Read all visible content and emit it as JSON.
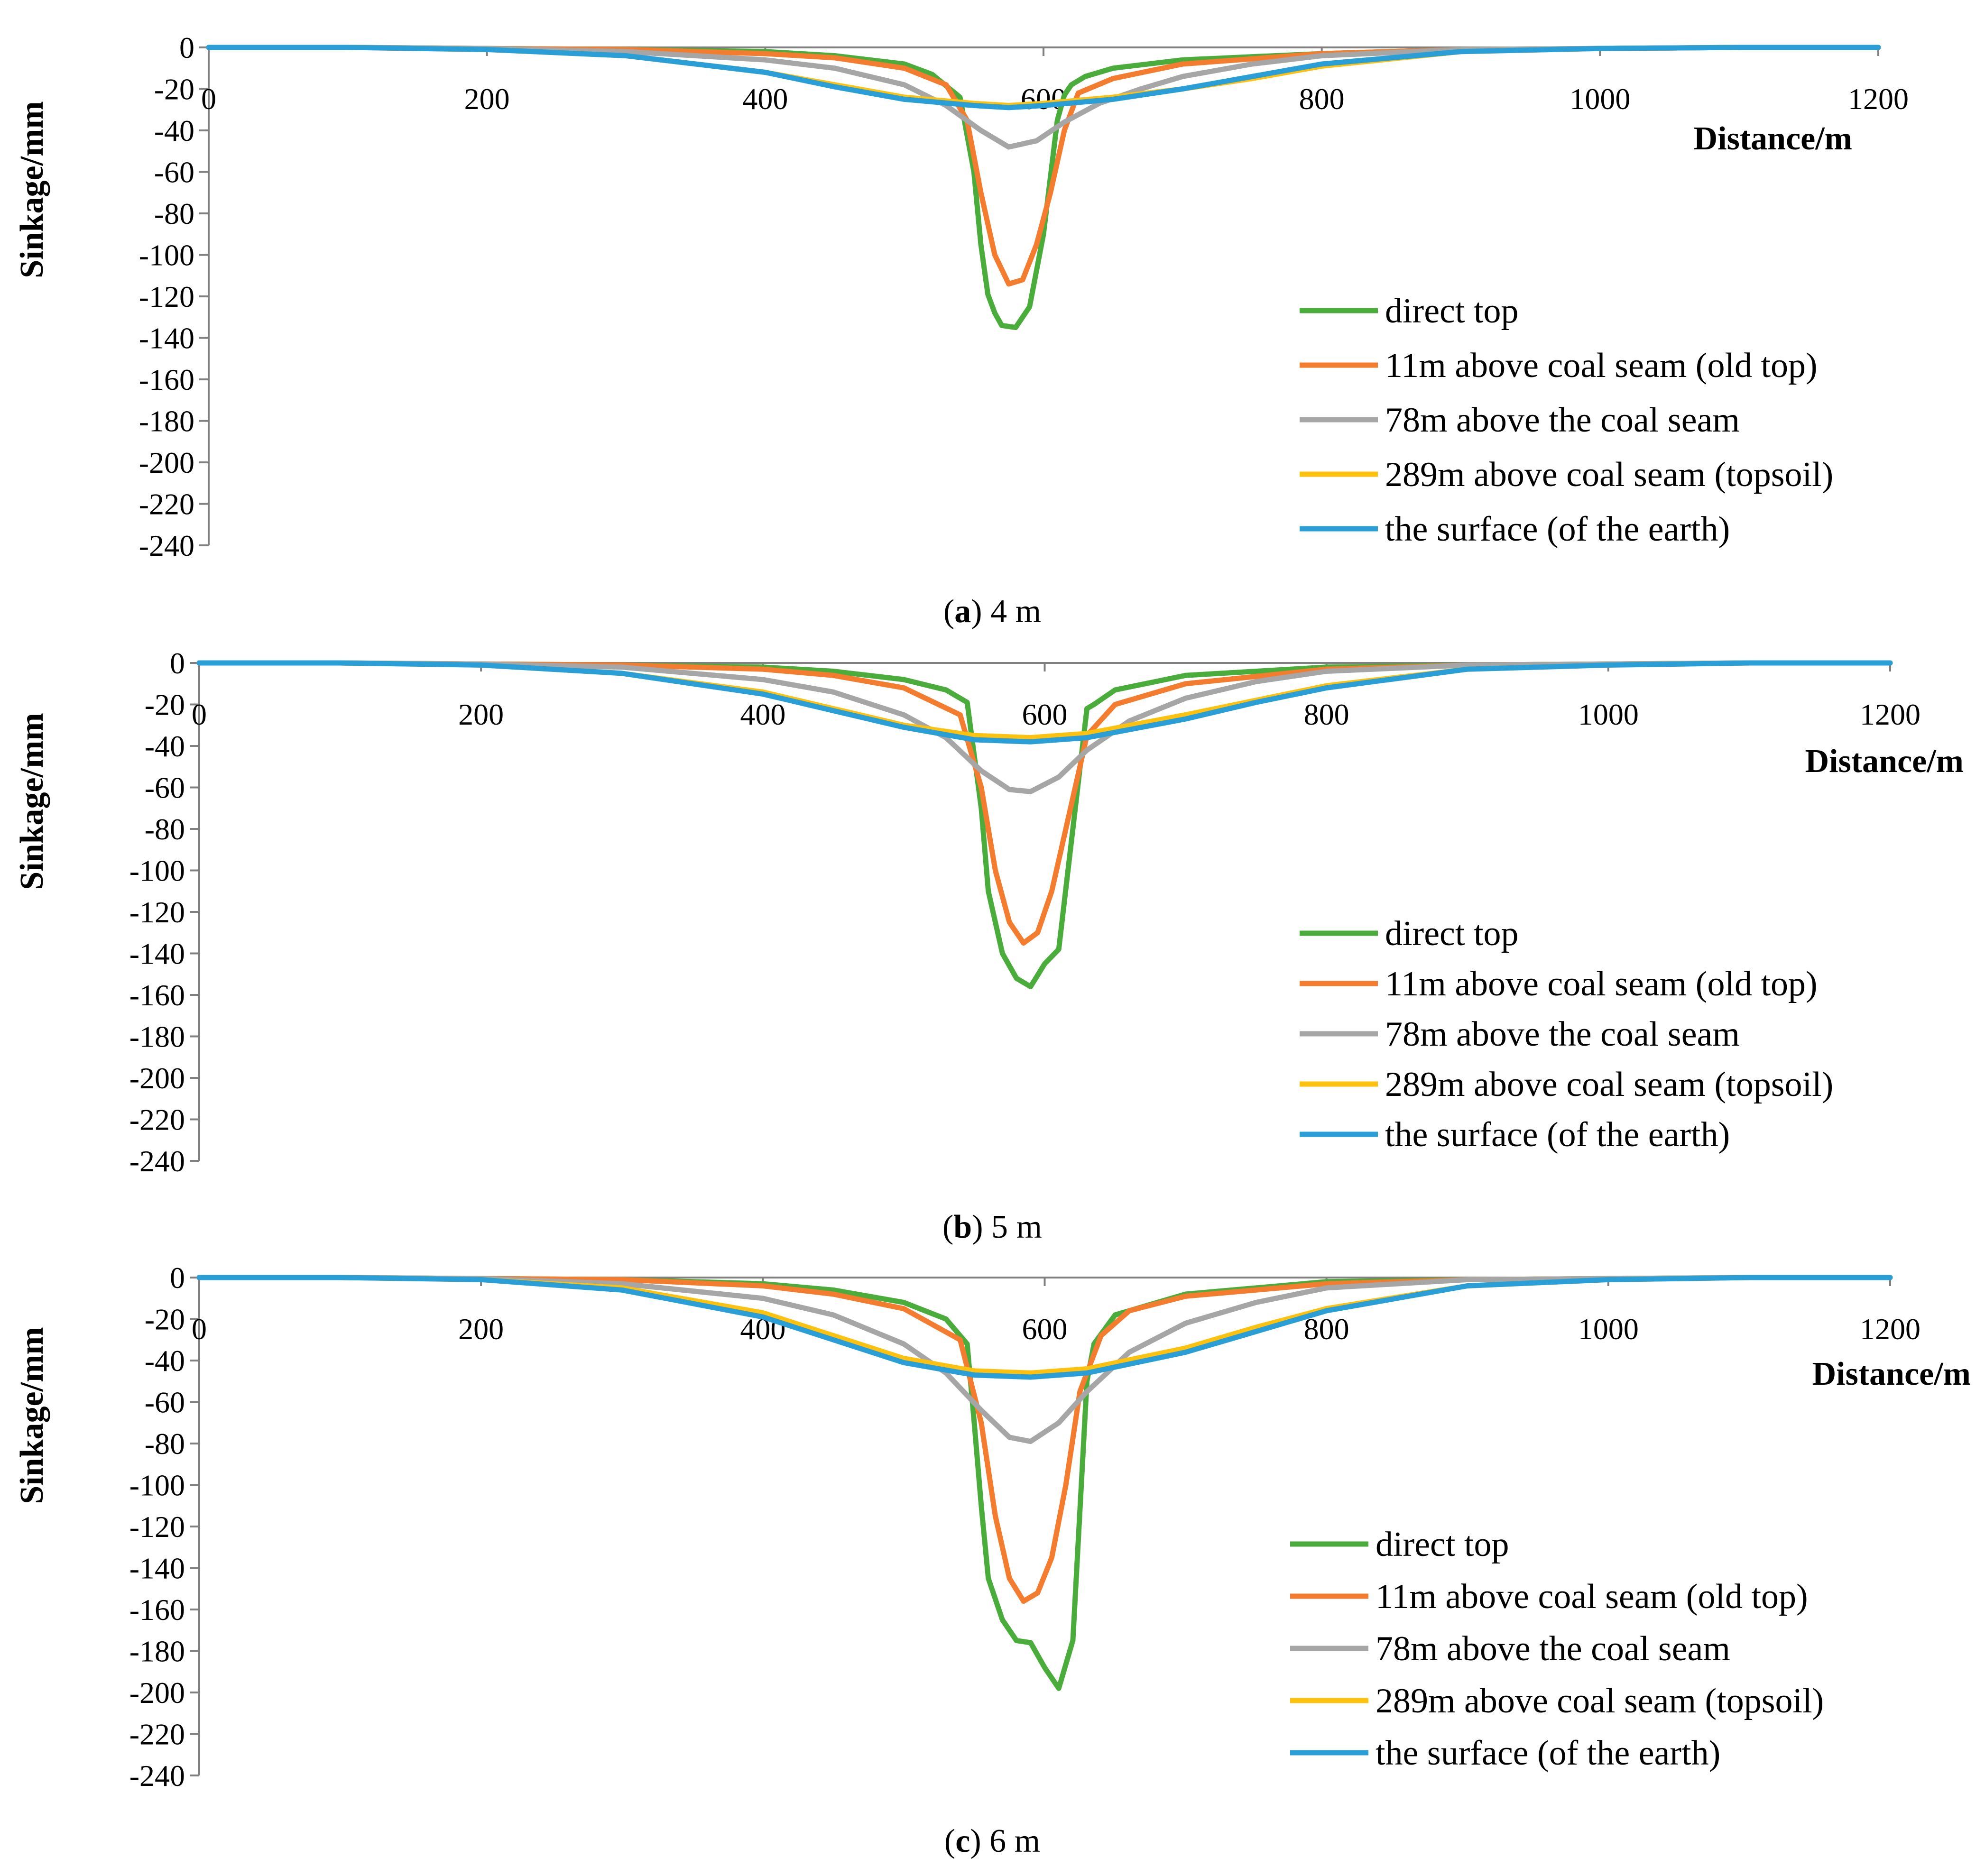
{
  "colors": {
    "direct_top": "#4aad3b",
    "old_top": "#f47c2f",
    "seam78": "#a6a6a6",
    "topsoil": "#fdc10e",
    "surface": "#2a9fd7",
    "axis": "#808080"
  },
  "chart_data": [
    {
      "type": "line",
      "panel_letter": "a",
      "caption_text": "4 m",
      "xlabel": "Distance/m",
      "ylabel": "Sinkage/mm",
      "xlim": [
        0,
        1200
      ],
      "ylim": [
        -240,
        0
      ],
      "xticks": [
        "0",
        "200",
        "400",
        "600",
        "800",
        "1000",
        "1200"
      ],
      "yticks": [
        "0",
        "-20",
        "-40",
        "-60",
        "-80",
        "-100",
        "-120",
        "-140",
        "-160",
        "-180",
        "-200",
        "-220",
        "-240"
      ],
      "legend_position": "right",
      "series": [
        {
          "name": "direct top",
          "color_key": "direct_top",
          "x": [
            0,
            100,
            200,
            300,
            400,
            450,
            500,
            520,
            540,
            550,
            555,
            560,
            565,
            570,
            580,
            590,
            600,
            610,
            615,
            620,
            630,
            650,
            700,
            800,
            900,
            1000,
            1100,
            1200
          ],
          "y": [
            0,
            0,
            -0.5,
            -1,
            -2,
            -4,
            -8,
            -13,
            -24,
            -60,
            -95,
            -119,
            -128,
            -134,
            -135,
            -125,
            -90,
            -35,
            -23,
            -18,
            -14,
            -10,
            -6,
            -3,
            -1,
            -0.5,
            0,
            0
          ]
        },
        {
          "name": "11m above coal seam (old top)",
          "color_key": "old_top",
          "x": [
            0,
            100,
            200,
            300,
            400,
            450,
            500,
            530,
            545,
            555,
            565,
            575,
            585,
            595,
            605,
            615,
            625,
            650,
            700,
            800,
            900,
            1000,
            1100,
            1200
          ],
          "y": [
            0,
            0,
            -0.5,
            -1,
            -3,
            -5,
            -10,
            -18,
            -35,
            -70,
            -100,
            -114,
            -112,
            -95,
            -70,
            -40,
            -22,
            -15,
            -8,
            -3,
            -1,
            -0.5,
            0,
            0
          ]
        },
        {
          "name": "78m above the coal seam",
          "color_key": "seam78",
          "x": [
            0,
            100,
            200,
            300,
            400,
            450,
            500,
            530,
            555,
            575,
            595,
            615,
            640,
            670,
            700,
            750,
            800,
            900,
            1000,
            1100,
            1200
          ],
          "y": [
            0,
            0,
            -0.5,
            -2,
            -6,
            -10,
            -18,
            -28,
            -40,
            -48,
            -45,
            -36,
            -27,
            -20,
            -14,
            -8,
            -4,
            -1,
            -0.5,
            0,
            0
          ]
        },
        {
          "name": "289m above coal seam (topsoil)",
          "color_key": "topsoil",
          "x": [
            0,
            100,
            200,
            300,
            400,
            450,
            500,
            550,
            575,
            600,
            650,
            700,
            750,
            800,
            900,
            1000,
            1100,
            1200
          ],
          "y": [
            0,
            0,
            -1,
            -4,
            -12,
            -18,
            -24,
            -27,
            -28,
            -27,
            -24,
            -20,
            -15,
            -9,
            -2,
            -0.5,
            0,
            0
          ]
        },
        {
          "name": "the surface (of the earth)",
          "color_key": "surface",
          "x": [
            0,
            100,
            200,
            300,
            400,
            450,
            500,
            550,
            575,
            600,
            650,
            700,
            750,
            800,
            900,
            1000,
            1100,
            1200
          ],
          "y": [
            0,
            0,
            -1,
            -4,
            -12,
            -19,
            -25,
            -28,
            -29,
            -28,
            -25,
            -20,
            -14,
            -8,
            -2,
            -0.5,
            0,
            0
          ]
        }
      ]
    },
    {
      "type": "line",
      "panel_letter": "b",
      "caption_text": "5 m",
      "xlabel": "Distance/m",
      "ylabel": "Sinkage/mm",
      "xlim": [
        0,
        1200
      ],
      "ylim": [
        -240,
        0
      ],
      "xticks": [
        "0",
        "200",
        "400",
        "600",
        "800",
        "1000",
        "1200"
      ],
      "yticks": [
        "0",
        "-20",
        "-40",
        "-60",
        "-80",
        "-100",
        "-120",
        "-140",
        "-160",
        "-180",
        "-200",
        "-220",
        "-240"
      ],
      "legend_position": "right",
      "series": [
        {
          "name": "direct top",
          "color_key": "direct_top",
          "x": [
            0,
            100,
            200,
            300,
            400,
            450,
            500,
            530,
            545,
            555,
            560,
            570,
            580,
            590,
            600,
            610,
            620,
            630,
            635,
            650,
            700,
            800,
            900,
            1000,
            1100,
            1200
          ],
          "y": [
            0,
            0,
            -0.5,
            -1,
            -2,
            -4,
            -8,
            -13,
            -19,
            -70,
            -110,
            -140,
            -152,
            -156,
            -145,
            -138,
            -80,
            -22,
            -20,
            -13,
            -6,
            -2,
            -1,
            -0.5,
            0,
            0
          ]
        },
        {
          "name": "11m above coal seam (old top)",
          "color_key": "old_top",
          "x": [
            0,
            100,
            200,
            300,
            400,
            450,
            500,
            540,
            555,
            565,
            575,
            585,
            595,
            605,
            615,
            630,
            650,
            700,
            800,
            900,
            1000,
            1100,
            1200
          ],
          "y": [
            0,
            0,
            -0.5,
            -1,
            -3,
            -6,
            -12,
            -25,
            -60,
            -100,
            -125,
            -135,
            -130,
            -110,
            -80,
            -35,
            -20,
            -10,
            -3,
            -1,
            -0.5,
            0,
            0
          ]
        },
        {
          "name": "78m above the coal seam",
          "color_key": "seam78",
          "x": [
            0,
            100,
            200,
            300,
            400,
            450,
            500,
            530,
            555,
            575,
            590,
            610,
            630,
            660,
            700,
            750,
            800,
            900,
            1000,
            1100,
            1200
          ],
          "y": [
            0,
            0,
            -0.5,
            -2,
            -8,
            -14,
            -25,
            -36,
            -52,
            -61,
            -62,
            -55,
            -42,
            -28,
            -17,
            -9,
            -4,
            -1,
            -0.5,
            0,
            0
          ]
        },
        {
          "name": "289m above coal seam (topsoil)",
          "color_key": "topsoil",
          "x": [
            0,
            100,
            200,
            300,
            400,
            450,
            500,
            550,
            590,
            630,
            700,
            750,
            800,
            900,
            1000,
            1100,
            1200
          ],
          "y": [
            0,
            0,
            -1,
            -5,
            -14,
            -22,
            -30,
            -35,
            -36,
            -34,
            -25,
            -18,
            -11,
            -3,
            -1,
            0,
            0
          ]
        },
        {
          "name": "the surface (of the earth)",
          "color_key": "surface",
          "x": [
            0,
            100,
            200,
            300,
            400,
            450,
            500,
            550,
            590,
            630,
            700,
            750,
            800,
            900,
            1000,
            1100,
            1200
          ],
          "y": [
            0,
            0,
            -1,
            -5,
            -15,
            -23,
            -31,
            -37,
            -38,
            -36,
            -27,
            -19,
            -12,
            -3,
            -1,
            0,
            0
          ]
        }
      ]
    },
    {
      "type": "line",
      "panel_letter": "c",
      "caption_text": "6 m",
      "xlabel": "Distance/m",
      "ylabel": "Sinkage/mm",
      "xlim": [
        0,
        1200
      ],
      "ylim": [
        -240,
        0
      ],
      "xticks": [
        "0",
        "200",
        "400",
        "600",
        "800",
        "1000",
        "1200"
      ],
      "yticks": [
        "0",
        "-20",
        "-40",
        "-60",
        "-80",
        "-100",
        "-120",
        "-140",
        "-160",
        "-180",
        "-200",
        "-220",
        "-240"
      ],
      "legend_position": "right",
      "series": [
        {
          "name": "direct top",
          "color_key": "direct_top",
          "x": [
            0,
            100,
            200,
            300,
            400,
            450,
            500,
            530,
            545,
            550,
            555,
            560,
            570,
            580,
            590,
            600,
            610,
            620,
            630,
            635,
            650,
            700,
            800,
            900,
            1000,
            1100,
            1200
          ],
          "y": [
            0,
            0,
            -0.5,
            -1,
            -3,
            -6,
            -12,
            -20,
            -32,
            -70,
            -110,
            -145,
            -165,
            -175,
            -176,
            -188,
            -198,
            -175,
            -50,
            -32,
            -18,
            -8,
            -2,
            -1,
            -0.5,
            0,
            0
          ]
        },
        {
          "name": "11m above coal seam (old top)",
          "color_key": "old_top",
          "x": [
            0,
            100,
            200,
            300,
            400,
            450,
            500,
            540,
            555,
            565,
            575,
            585,
            595,
            605,
            615,
            625,
            640,
            660,
            700,
            800,
            900,
            1000,
            1100,
            1200
          ],
          "y": [
            0,
            0,
            -0.5,
            -1,
            -4,
            -8,
            -15,
            -30,
            -70,
            -115,
            -145,
            -156,
            -152,
            -135,
            -100,
            -55,
            -28,
            -16,
            -9,
            -3,
            -1,
            -0.5,
            0,
            0
          ]
        },
        {
          "name": "78m above the coal seam",
          "color_key": "seam78",
          "x": [
            0,
            100,
            200,
            300,
            400,
            450,
            500,
            530,
            555,
            575,
            590,
            610,
            630,
            660,
            700,
            750,
            800,
            900,
            1000,
            1100,
            1200
          ],
          "y": [
            0,
            0,
            -0.5,
            -3,
            -10,
            -18,
            -32,
            -46,
            -64,
            -77,
            -79,
            -70,
            -55,
            -36,
            -22,
            -12,
            -5,
            -1,
            -0.5,
            0,
            0
          ]
        },
        {
          "name": "289m above coal seam (topsoil)",
          "color_key": "topsoil",
          "x": [
            0,
            100,
            200,
            300,
            400,
            450,
            500,
            550,
            590,
            630,
            700,
            750,
            800,
            900,
            1000,
            1100,
            1200
          ],
          "y": [
            0,
            0,
            -1,
            -5,
            -17,
            -28,
            -39,
            -45,
            -46,
            -44,
            -34,
            -24,
            -15,
            -4,
            -1,
            0,
            0
          ]
        },
        {
          "name": "the surface (of the earth)",
          "color_key": "surface",
          "x": [
            0,
            100,
            200,
            300,
            400,
            450,
            500,
            550,
            590,
            630,
            700,
            750,
            800,
            900,
            1000,
            1100,
            1200
          ],
          "y": [
            0,
            0,
            -1,
            -6,
            -19,
            -30,
            -41,
            -47,
            -48,
            -46,
            -36,
            -26,
            -16,
            -4,
            -1,
            0,
            0
          ]
        }
      ]
    }
  ]
}
